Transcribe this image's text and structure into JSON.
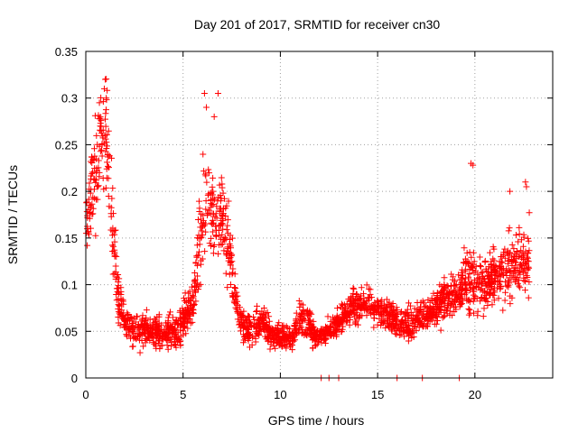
{
  "chart_data": {
    "type": "scatter",
    "title": "Day 201 of 2017, SRMTID for receiver cn30",
    "xlabel": "GPS time / hours",
    "ylabel": "SRMTID / TECUs",
    "xlim": [
      0,
      24
    ],
    "ylim": [
      0,
      0.35
    ],
    "xticks": [
      0,
      5,
      10,
      15,
      20
    ],
    "xtick_labels": [
      "0",
      "5",
      "10",
      "15",
      "20"
    ],
    "yticks": [
      0,
      0.05,
      0.1,
      0.15,
      0.2,
      0.25,
      0.3,
      0.35
    ],
    "ytick_labels": [
      "0",
      "0.05",
      "0.1",
      "0.15",
      "0.2",
      "0.25",
      "0.3",
      "0.35"
    ],
    "grid": true,
    "marker": "+",
    "color": "#ff0000",
    "series": [
      {
        "name": "SRMTID",
        "trend": [
          [
            0.0,
            0.16,
            0.04
          ],
          [
            0.3,
            0.2,
            0.05
          ],
          [
            0.6,
            0.22,
            0.07
          ],
          [
            0.9,
            0.26,
            0.06
          ],
          [
            1.1,
            0.25,
            0.06
          ],
          [
            1.4,
            0.16,
            0.05
          ],
          [
            1.7,
            0.08,
            0.03
          ],
          [
            2.0,
            0.06,
            0.02
          ],
          [
            2.5,
            0.05,
            0.02
          ],
          [
            3.0,
            0.055,
            0.02
          ],
          [
            3.5,
            0.05,
            0.02
          ],
          [
            4.0,
            0.045,
            0.02
          ],
          [
            4.5,
            0.05,
            0.02
          ],
          [
            5.0,
            0.06,
            0.025
          ],
          [
            5.5,
            0.08,
            0.03
          ],
          [
            5.9,
            0.15,
            0.06
          ],
          [
            6.2,
            0.2,
            0.07
          ],
          [
            6.6,
            0.17,
            0.06
          ],
          [
            7.0,
            0.17,
            0.05
          ],
          [
            7.3,
            0.15,
            0.05
          ],
          [
            7.7,
            0.08,
            0.03
          ],
          [
            8.0,
            0.055,
            0.02
          ],
          [
            8.5,
            0.05,
            0.02
          ],
          [
            9.0,
            0.06,
            0.02
          ],
          [
            9.5,
            0.045,
            0.015
          ],
          [
            10.0,
            0.045,
            0.015
          ],
          [
            10.5,
            0.04,
            0.015
          ],
          [
            11.0,
            0.065,
            0.02
          ],
          [
            11.4,
            0.06,
            0.02
          ],
          [
            11.8,
            0.045,
            0.015
          ],
          [
            12.0,
            0.045,
            0.01
          ],
          [
            12.6,
            0.05,
            0.015
          ],
          [
            13.2,
            0.065,
            0.02
          ],
          [
            13.7,
            0.075,
            0.02
          ],
          [
            14.2,
            0.08,
            0.02
          ],
          [
            14.7,
            0.075,
            0.02
          ],
          [
            15.2,
            0.07,
            0.02
          ],
          [
            15.7,
            0.065,
            0.02
          ],
          [
            16.2,
            0.06,
            0.02
          ],
          [
            16.7,
            0.055,
            0.02
          ],
          [
            17.2,
            0.065,
            0.02
          ],
          [
            17.7,
            0.07,
            0.02
          ],
          [
            18.2,
            0.08,
            0.025
          ],
          [
            18.7,
            0.085,
            0.025
          ],
          [
            19.2,
            0.09,
            0.025
          ],
          [
            19.6,
            0.11,
            0.04
          ],
          [
            20.0,
            0.1,
            0.035
          ],
          [
            20.5,
            0.1,
            0.03
          ],
          [
            21.0,
            0.11,
            0.03
          ],
          [
            21.5,
            0.11,
            0.035
          ],
          [
            22.0,
            0.12,
            0.04
          ],
          [
            22.5,
            0.12,
            0.04
          ],
          [
            22.8,
            0.13,
            0.04
          ]
        ],
        "spikes": [
          [
            1.0,
            0.32
          ],
          [
            0.95,
            0.31
          ],
          [
            1.05,
            0.3
          ],
          [
            0.7,
            0.295
          ],
          [
            6.1,
            0.305
          ],
          [
            6.8,
            0.305
          ],
          [
            6.2,
            0.29
          ],
          [
            6.6,
            0.28
          ],
          [
            19.8,
            0.23
          ],
          [
            19.9,
            0.228
          ],
          [
            22.6,
            0.21
          ],
          [
            22.65,
            0.205
          ],
          [
            21.8,
            0.2
          ]
        ],
        "zero_points": [
          12.1,
          12.5,
          13.0,
          16.0,
          17.3,
          19.2
        ]
      }
    ]
  }
}
